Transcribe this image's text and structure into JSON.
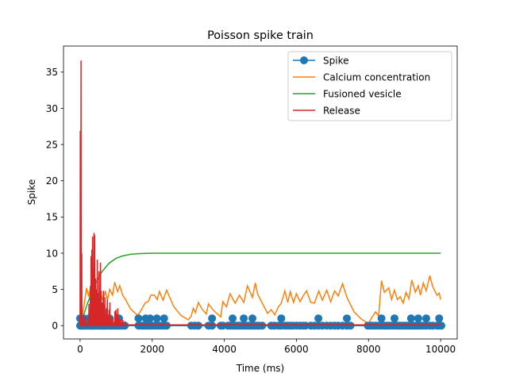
{
  "chart_data": {
    "type": "line",
    "title": "Poisson spike train",
    "xlabel": "Time (ms)",
    "ylabel": "Spike",
    "xlim": [
      -460,
      10460
    ],
    "ylim": [
      -1.84,
      38.6
    ],
    "xticks": [
      0,
      2000,
      4000,
      6000,
      8000,
      10000
    ],
    "yticks": [
      0,
      5,
      10,
      15,
      20,
      25,
      30,
      35
    ],
    "grid": false,
    "legend_position": "top-right",
    "series": [
      {
        "name": "Spike",
        "color": "#1f77b4",
        "marker": "circle",
        "spike_times": [
          0,
          30,
          60,
          100,
          140,
          190,
          240,
          280,
          300,
          340,
          370,
          420,
          470,
          520,
          560,
          610,
          640,
          680,
          720,
          770,
          820,
          860,
          900,
          960,
          990,
          1040,
          1080,
          1130,
          1180,
          1240,
          1620,
          1700,
          1760,
          1820,
          1880,
          1940,
          1990,
          2060,
          2130,
          2200,
          2260,
          2330,
          2400,
          3080,
          3180,
          3280,
          3560,
          3660,
          3900,
          3960,
          4100,
          4160,
          4230,
          4290,
          4350,
          4410,
          4470,
          4540,
          4610,
          4670,
          4730,
          4780,
          4840,
          4900,
          4960,
          5050,
          5300,
          5390,
          5500,
          5580,
          5680,
          5760,
          5830,
          5900,
          6000,
          6100,
          6180,
          6250,
          6400,
          6500,
          6610,
          6720,
          6840,
          6950,
          7060,
          7160,
          7280,
          7400,
          7500,
          7980,
          8060,
          8120,
          8200,
          8280,
          8360,
          8440,
          8500,
          8560,
          8640,
          8720,
          8800,
          8860,
          8920,
          8990,
          9060,
          9120,
          9180,
          9250,
          9320,
          9380,
          9440,
          9520,
          9600,
          9700,
          9780,
          9900,
          9960,
          10020
        ],
        "raised_spike_times": [
          0,
          100,
          240,
          300,
          420,
          560,
          820,
          1080,
          1620,
          1820,
          1940,
          2130,
          2330,
          3660,
          4230,
          4540,
          4780,
          5580,
          6610,
          7400,
          8360,
          8720,
          9180,
          9380,
          9600,
          9960
        ],
        "values_note": "markers at 0 (no spike baseline) and 1 (spike)"
      },
      {
        "name": "Calcium concentration",
        "color": "#ff7f0e",
        "x": [
          0,
          100,
          180,
          240,
          300,
          360,
          420,
          500,
          560,
          640,
          700,
          760,
          820,
          900,
          960,
          1040,
          1100,
          1180,
          1260,
          1400,
          1600,
          1700,
          1800,
          1900,
          1960,
          2060,
          2140,
          2200,
          2300,
          2400,
          2600,
          2800,
          3000,
          3080,
          3140,
          3200,
          3280,
          3380,
          3500,
          3560,
          3700,
          3900,
          3960,
          4060,
          4160,
          4300,
          4420,
          4540,
          4640,
          4780,
          4860,
          4920,
          5000,
          5200,
          5300,
          5400,
          5500,
          5580,
          5680,
          5760,
          5830,
          5920,
          6000,
          6100,
          6200,
          6280,
          6400,
          6500,
          6620,
          6720,
          6840,
          6950,
          7060,
          7160,
          7280,
          7400,
          7600,
          7800,
          8000,
          8100,
          8200,
          8280,
          8360,
          8440,
          8560,
          8640,
          8720,
          8800,
          8880,
          8960,
          9040,
          9120,
          9200,
          9300,
          9380,
          9440,
          9520,
          9600,
          9700,
          9780,
          9900,
          9960,
          10000
        ],
        "y": [
          0,
          2.5,
          5.2,
          4.0,
          5.5,
          3.8,
          5.2,
          3.6,
          4.6,
          3.4,
          4.8,
          3.5,
          5.0,
          4.2,
          6.0,
          4.7,
          5.5,
          4.2,
          3.6,
          2.3,
          1.4,
          2.2,
          3.1,
          3.4,
          4.2,
          4.2,
          3.6,
          4.7,
          3.5,
          4.9,
          2.6,
          1.4,
          0.8,
          1.3,
          2.4,
          1.8,
          3.2,
          2.3,
          1.6,
          3.0,
          2.1,
          1.2,
          3.3,
          2.6,
          4.4,
          3.1,
          4.2,
          3.2,
          5.5,
          3.9,
          5.9,
          4.4,
          3.6,
          1.7,
          2.2,
          1.5,
          2.6,
          3.1,
          4.8,
          3.2,
          4.7,
          3.2,
          4.4,
          3.3,
          4.2,
          4.8,
          3.2,
          3.1,
          4.8,
          3.5,
          4.9,
          3.3,
          4.8,
          4.1,
          5.8,
          3.9,
          1.9,
          0.9,
          0.3,
          1.2,
          1.9,
          1.3,
          6.2,
          4.6,
          5.2,
          3.6,
          4.9,
          3.6,
          4.0,
          3.1,
          4.6,
          3.7,
          6.3,
          4.6,
          5.5,
          4.2,
          5.9,
          4.8,
          6.9,
          5.4,
          4.2,
          4.5,
          3.6
        ]
      },
      {
        "name": "Fusioned vesicle",
        "color": "#2ca02c",
        "x": [
          0,
          200,
          400,
          600,
          800,
          1000,
          1200,
          1400,
          1600,
          1800,
          2000,
          2200,
          2500,
          3000,
          4000,
          5000,
          6000,
          7000,
          8000,
          9000,
          10000
        ],
        "y": [
          0,
          3.0,
          5.6,
          7.4,
          8.6,
          9.3,
          9.65,
          9.85,
          9.93,
          9.97,
          9.99,
          10.0,
          10.0,
          10.0,
          10.0,
          10.0,
          10.0,
          10.0,
          10.0,
          10.0,
          10.0
        ]
      },
      {
        "name": "Release",
        "color": "#d62728",
        "baseline": 0,
        "impulses": [
          [
            0,
            26.9
          ],
          [
            20,
            36.6
          ],
          [
            40,
            10.0
          ],
          [
            60,
            1.4
          ],
          [
            100,
            1.3
          ],
          [
            140,
            1.2
          ],
          [
            190,
            1.0
          ],
          [
            240,
            3.0
          ],
          [
            280,
            5.5
          ],
          [
            300,
            9.6
          ],
          [
            320,
            10.5
          ],
          [
            340,
            12.3
          ],
          [
            360,
            7.8
          ],
          [
            380,
            12.8
          ],
          [
            400,
            12.5
          ],
          [
            420,
            6.5
          ],
          [
            440,
            5.0
          ],
          [
            470,
            9.1
          ],
          [
            490,
            4.5
          ],
          [
            520,
            7.5
          ],
          [
            540,
            3.5
          ],
          [
            560,
            8.7
          ],
          [
            580,
            4.8
          ],
          [
            610,
            3.2
          ],
          [
            640,
            4.8
          ],
          [
            660,
            3.0
          ],
          [
            680,
            3.9
          ],
          [
            720,
            2.4
          ],
          [
            750,
            3.6
          ],
          [
            770,
            1.5
          ],
          [
            800,
            2.2
          ],
          [
            820,
            3.2
          ],
          [
            860,
            1.0
          ],
          [
            900,
            1.2
          ],
          [
            960,
            2.0
          ],
          [
            990,
            2.2
          ],
          [
            1020,
            1.6
          ],
          [
            1040,
            2.4
          ],
          [
            1080,
            1.0
          ],
          [
            1130,
            0.8
          ],
          [
            1180,
            0.8
          ],
          [
            1240,
            0.6
          ]
        ],
        "tail_level": 0.1
      }
    ]
  }
}
